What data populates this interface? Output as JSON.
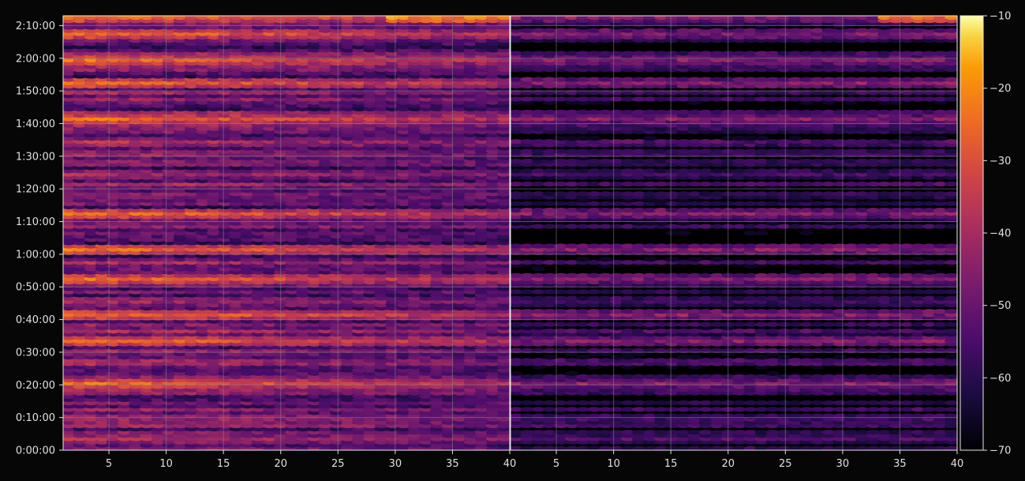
{
  "chart_data": {
    "type": "heatmap",
    "title": "",
    "xlabel": "",
    "ylabel": "",
    "panels": [
      {
        "name": "",
        "x_range": [
          1,
          40
        ],
        "x_ticks": [
          5,
          10,
          15,
          20,
          25,
          30,
          35,
          40
        ],
        "x_tick_labels": [
          "5",
          "10",
          "15",
          "20",
          "25",
          "30",
          "35",
          "40"
        ],
        "intensity_profile": "bright"
      },
      {
        "name": "",
        "x_range": [
          1,
          40
        ],
        "x_ticks": [
          5,
          10,
          15,
          20,
          25,
          30,
          35,
          40
        ],
        "x_tick_labels": [
          "5",
          "10",
          "15",
          "20",
          "25",
          "30",
          "35",
          "40"
        ],
        "intensity_profile": "dim"
      }
    ],
    "y_range_seconds": [
      0,
      7980
    ],
    "y_ticks_seconds": [
      0,
      600,
      1200,
      1800,
      2400,
      3000,
      3600,
      4200,
      4800,
      5400,
      6000,
      6600,
      7200,
      7800
    ],
    "y_tick_labels": [
      "0:00:00",
      "0:10:00",
      "0:20:00",
      "0:30:00",
      "0:40:00",
      "0:50:00",
      "1:00:00",
      "1:10:00",
      "1:20:00",
      "1:30:00",
      "1:40:00",
      "1:50:00",
      "2:00:00",
      "2:10:00"
    ],
    "colorbar": {
      "range": [
        -70,
        -10
      ],
      "ticks": [
        -10,
        -20,
        -30,
        -40,
        -50,
        -60,
        -70
      ],
      "tick_labels": [
        "−10",
        "−20",
        "−30",
        "−40",
        "−50",
        "−60",
        "−70"
      ],
      "colormap": "inferno"
    },
    "grid": true,
    "bright_rows_seconds": [
      7920,
      7620,
      7140,
      6720,
      6060,
      4320,
      3660,
      3120,
      2460,
      1980,
      1200
    ],
    "colors": {
      "background": "#060606",
      "grid": "#888888",
      "tick_text": "#e0e0e0"
    }
  }
}
